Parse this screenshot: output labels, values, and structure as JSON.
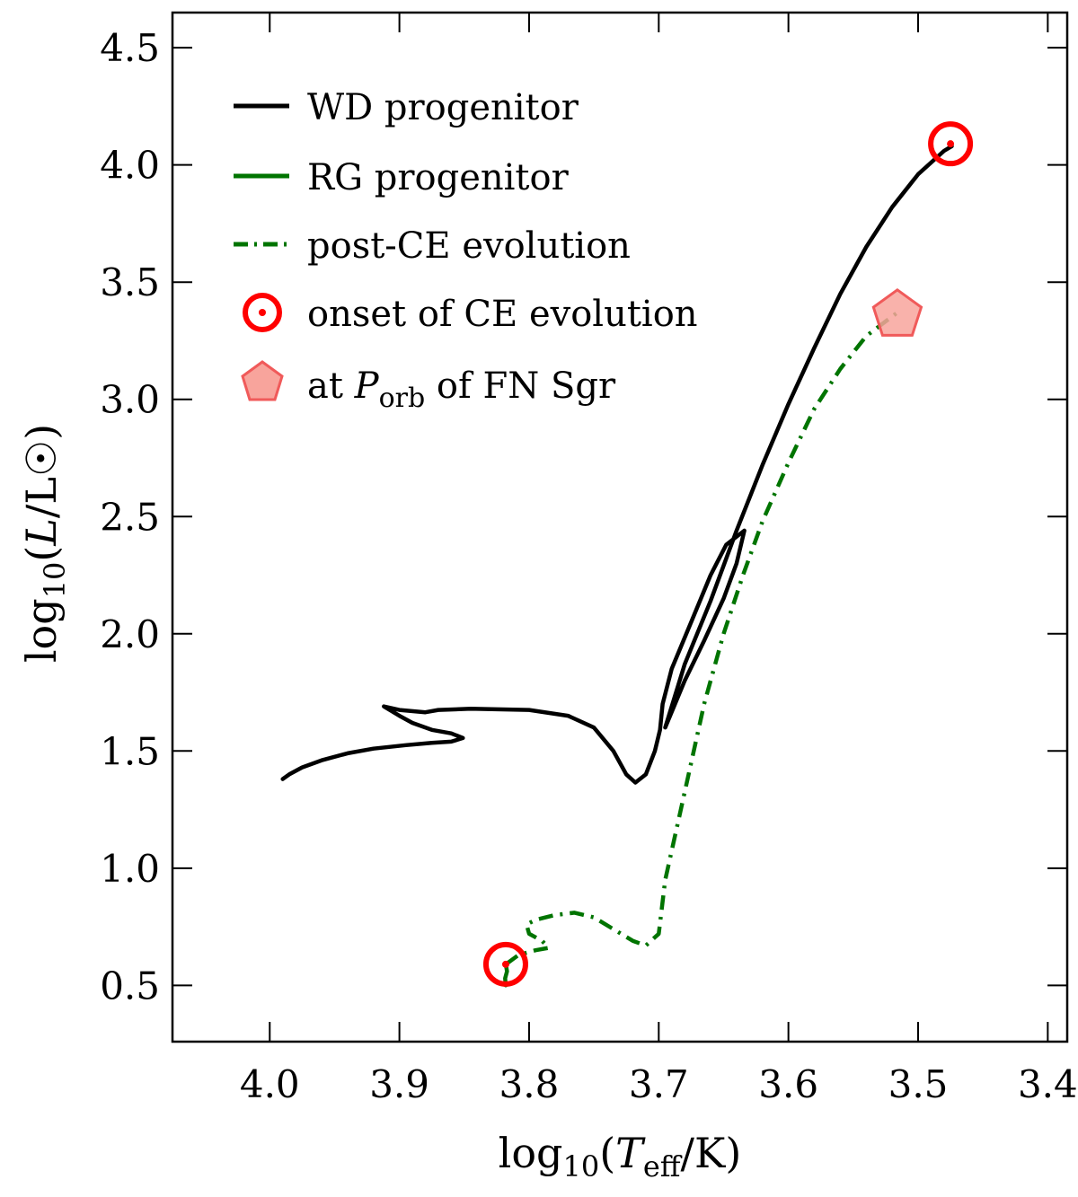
{
  "chart_data": {
    "type": "line",
    "title": "",
    "xlabel": "log10(Teff/K)",
    "ylabel": "log10(L/L☉)",
    "xlabel_parts": {
      "pre": "log",
      "sub1": "10",
      "open": "(",
      "var": "T",
      "sub2": "eff",
      "close": "/K)"
    },
    "ylabel_parts": {
      "pre": "log",
      "sub1": "10",
      "open": "(",
      "var": "L",
      "close": "/L☉)"
    },
    "xlim": [
      4.075,
      3.385
    ],
    "ylim": [
      0.26,
      4.65
    ],
    "xticks": [
      4.0,
      3.9,
      3.8,
      3.7,
      3.6,
      3.5,
      3.4
    ],
    "xtick_labels": [
      "4.0",
      "3.9",
      "3.8",
      "3.7",
      "3.6",
      "3.5",
      "3.4"
    ],
    "yticks": [
      0.5,
      1.0,
      1.5,
      2.0,
      2.5,
      3.0,
      3.5,
      4.0,
      4.5
    ],
    "ytick_labels": [
      "0.5",
      "1.0",
      "1.5",
      "2.0",
      "2.5",
      "3.0",
      "3.5",
      "4.0",
      "4.5"
    ],
    "legend_position": "upper-left",
    "series": [
      {
        "name": "WD progenitor",
        "color": "#000000",
        "style": "solid",
        "points": [
          [
            3.99,
            1.38
          ],
          [
            3.985,
            1.4
          ],
          [
            3.975,
            1.43
          ],
          [
            3.96,
            1.46
          ],
          [
            3.94,
            1.49
          ],
          [
            3.92,
            1.51
          ],
          [
            3.895,
            1.525
          ],
          [
            3.875,
            1.535
          ],
          [
            3.86,
            1.54
          ],
          [
            3.851,
            1.555
          ],
          [
            3.86,
            1.575
          ],
          [
            3.875,
            1.59
          ],
          [
            3.89,
            1.62
          ],
          [
            3.9,
            1.65
          ],
          [
            3.912,
            1.69
          ],
          [
            3.9,
            1.675
          ],
          [
            3.88,
            1.665
          ],
          [
            3.87,
            1.675
          ],
          [
            3.845,
            1.68
          ],
          [
            3.8,
            1.675
          ],
          [
            3.77,
            1.65
          ],
          [
            3.75,
            1.6
          ],
          [
            3.735,
            1.5
          ],
          [
            3.725,
            1.4
          ],
          [
            3.718,
            1.365
          ],
          [
            3.71,
            1.4
          ],
          [
            3.703,
            1.5
          ],
          [
            3.699,
            1.59
          ],
          [
            3.697,
            1.7
          ],
          [
            3.69,
            1.85
          ],
          [
            3.675,
            2.05
          ],
          [
            3.66,
            2.25
          ],
          [
            3.648,
            2.38
          ],
          [
            3.634,
            2.44
          ],
          [
            3.64,
            2.3
          ],
          [
            3.65,
            2.15
          ],
          [
            3.665,
            1.97
          ],
          [
            3.68,
            1.8
          ],
          [
            3.695,
            1.6
          ],
          [
            3.68,
            1.87
          ],
          [
            3.66,
            2.14
          ],
          [
            3.64,
            2.44
          ],
          [
            3.62,
            2.72
          ],
          [
            3.6,
            2.98
          ],
          [
            3.58,
            3.22
          ],
          [
            3.56,
            3.45
          ],
          [
            3.54,
            3.65
          ],
          [
            3.52,
            3.82
          ],
          [
            3.5,
            3.96
          ],
          [
            3.48,
            4.06
          ],
          [
            3.474,
            4.08
          ]
        ]
      },
      {
        "name": "RG progenitor",
        "color": "#007400",
        "style": "solid",
        "points": [
          [
            3.818,
            0.5
          ],
          [
            3.8185,
            0.53
          ],
          [
            3.817,
            0.56
          ],
          [
            3.818,
            0.59
          ]
        ]
      },
      {
        "name": "post-CE evolution",
        "color": "#007400",
        "style": "dashdot",
        "points": [
          [
            3.818,
            0.59
          ],
          [
            3.808,
            0.63
          ],
          [
            3.795,
            0.65
          ],
          [
            3.785,
            0.66
          ],
          [
            3.79,
            0.69
          ],
          [
            3.8,
            0.72
          ],
          [
            3.802,
            0.76
          ],
          [
            3.795,
            0.78
          ],
          [
            3.78,
            0.8
          ],
          [
            3.765,
            0.81
          ],
          [
            3.75,
            0.79
          ],
          [
            3.735,
            0.74
          ],
          [
            3.72,
            0.69
          ],
          [
            3.71,
            0.67
          ],
          [
            3.7,
            0.72
          ],
          [
            3.695,
            0.95
          ],
          [
            3.685,
            1.2
          ],
          [
            3.675,
            1.45
          ],
          [
            3.665,
            1.7
          ],
          [
            3.65,
            2.0
          ],
          [
            3.635,
            2.25
          ],
          [
            3.62,
            2.48
          ],
          [
            3.6,
            2.73
          ],
          [
            3.58,
            2.96
          ],
          [
            3.56,
            3.13
          ],
          [
            3.54,
            3.27
          ],
          [
            3.516,
            3.37
          ]
        ]
      }
    ],
    "markers": [
      {
        "name": "onset of CE evolution",
        "type": "circle-dot",
        "color": "#ff0000",
        "points": [
          [
            3.475,
            4.09
          ],
          [
            3.818,
            0.59
          ]
        ]
      },
      {
        "name": "at Porb of FN Sgr",
        "type": "pentagon",
        "color": "#f8a49c",
        "edge_color": "#f05a5a",
        "points": [
          [
            3.516,
            3.36
          ]
        ]
      }
    ],
    "legend": [
      {
        "label": "WD progenitor",
        "kind": "line-black"
      },
      {
        "label": "RG progenitor",
        "kind": "line-green"
      },
      {
        "label": "post-CE evolution",
        "kind": "dashdot-green"
      },
      {
        "label": "onset of CE evolution",
        "kind": "circle"
      },
      {
        "label_parts": {
          "pre": "at ",
          "var": "P",
          "sub": "orb",
          "post": " of FN Sgr"
        },
        "label": "at Porb of FN Sgr",
        "kind": "pentagon"
      }
    ]
  }
}
